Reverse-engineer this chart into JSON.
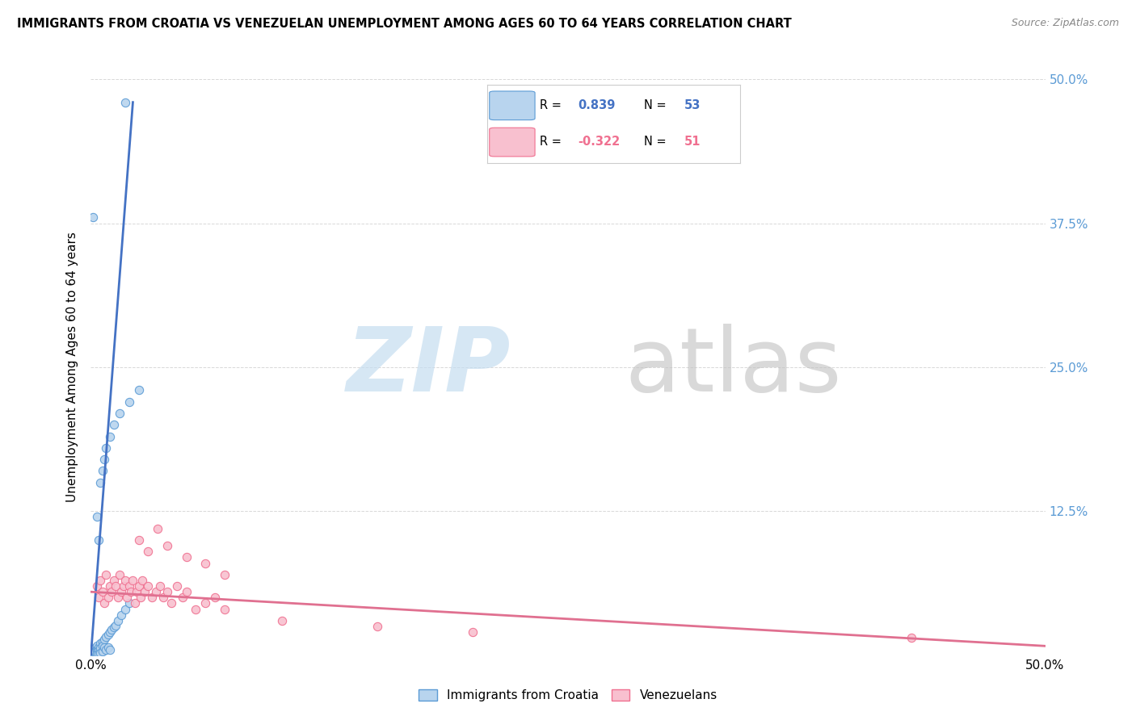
{
  "title": "IMMIGRANTS FROM CROATIA VS VENEZUELAN UNEMPLOYMENT AMONG AGES 60 TO 64 YEARS CORRELATION CHART",
  "source": "Source: ZipAtlas.com",
  "ylabel": "Unemployment Among Ages 60 to 64 years",
  "xmin": 0.0,
  "xmax": 0.5,
  "ymin": 0.0,
  "ymax": 0.5,
  "r_blue": 0.839,
  "n_blue": 53,
  "r_pink": -0.322,
  "n_pink": 51,
  "blue_fill_color": "#b8d4ee",
  "pink_fill_color": "#f8c0cf",
  "blue_edge_color": "#5b9bd5",
  "pink_edge_color": "#f07090",
  "blue_line_color": "#4472c4",
  "pink_line_color": "#e07090",
  "right_axis_color": "#5b9bd5",
  "legend_label_blue": "Immigrants from Croatia",
  "legend_label_pink": "Venezuelans",
  "blue_scatter_x": [
    0.0008,
    0.001,
    0.001,
    0.0012,
    0.0012,
    0.0015,
    0.0015,
    0.002,
    0.002,
    0.002,
    0.0022,
    0.0025,
    0.003,
    0.003,
    0.003,
    0.003,
    0.004,
    0.004,
    0.004,
    0.005,
    0.005,
    0.005,
    0.006,
    0.006,
    0.006,
    0.007,
    0.007,
    0.008,
    0.008,
    0.009,
    0.009,
    0.01,
    0.01,
    0.011,
    0.012,
    0.013,
    0.014,
    0.016,
    0.018,
    0.02,
    0.003,
    0.004,
    0.005,
    0.006,
    0.007,
    0.008,
    0.01,
    0.012,
    0.015,
    0.02,
    0.025,
    0.001,
    0.018
  ],
  "blue_scatter_y": [
    0.005,
    0.003,
    0.002,
    0.004,
    0.001,
    0.005,
    0.002,
    0.006,
    0.003,
    0.001,
    0.002,
    0.003,
    0.008,
    0.005,
    0.003,
    0.001,
    0.007,
    0.004,
    0.001,
    0.01,
    0.006,
    0.002,
    0.012,
    0.008,
    0.003,
    0.014,
    0.007,
    0.016,
    0.005,
    0.018,
    0.007,
    0.02,
    0.005,
    0.022,
    0.024,
    0.026,
    0.03,
    0.035,
    0.04,
    0.045,
    0.12,
    0.1,
    0.15,
    0.16,
    0.17,
    0.18,
    0.19,
    0.2,
    0.21,
    0.22,
    0.23,
    0.38,
    0.48
  ],
  "pink_scatter_x": [
    0.003,
    0.004,
    0.005,
    0.006,
    0.007,
    0.008,
    0.009,
    0.01,
    0.011,
    0.012,
    0.013,
    0.014,
    0.015,
    0.016,
    0.017,
    0.018,
    0.019,
    0.02,
    0.021,
    0.022,
    0.023,
    0.024,
    0.025,
    0.026,
    0.027,
    0.028,
    0.03,
    0.032,
    0.034,
    0.036,
    0.038,
    0.04,
    0.042,
    0.045,
    0.048,
    0.05,
    0.055,
    0.06,
    0.065,
    0.07,
    0.025,
    0.03,
    0.035,
    0.04,
    0.05,
    0.06,
    0.07,
    0.1,
    0.15,
    0.2,
    0.43
  ],
  "pink_scatter_y": [
    0.06,
    0.05,
    0.065,
    0.055,
    0.045,
    0.07,
    0.05,
    0.06,
    0.055,
    0.065,
    0.06,
    0.05,
    0.07,
    0.055,
    0.06,
    0.065,
    0.05,
    0.06,
    0.055,
    0.065,
    0.045,
    0.055,
    0.06,
    0.05,
    0.065,
    0.055,
    0.06,
    0.05,
    0.055,
    0.06,
    0.05,
    0.055,
    0.045,
    0.06,
    0.05,
    0.055,
    0.04,
    0.045,
    0.05,
    0.04,
    0.1,
    0.09,
    0.11,
    0.095,
    0.085,
    0.08,
    0.07,
    0.03,
    0.025,
    0.02,
    0.015
  ],
  "blue_line_x": [
    0.0,
    0.022
  ],
  "blue_line_y": [
    0.0,
    0.48
  ],
  "pink_line_x": [
    0.0,
    0.5
  ],
  "pink_line_y": [
    0.055,
    0.008
  ],
  "grid_color": "#d8d8d8",
  "watermark_zip_color": "#c5ddf0",
  "watermark_atlas_color": "#c0c0c0"
}
